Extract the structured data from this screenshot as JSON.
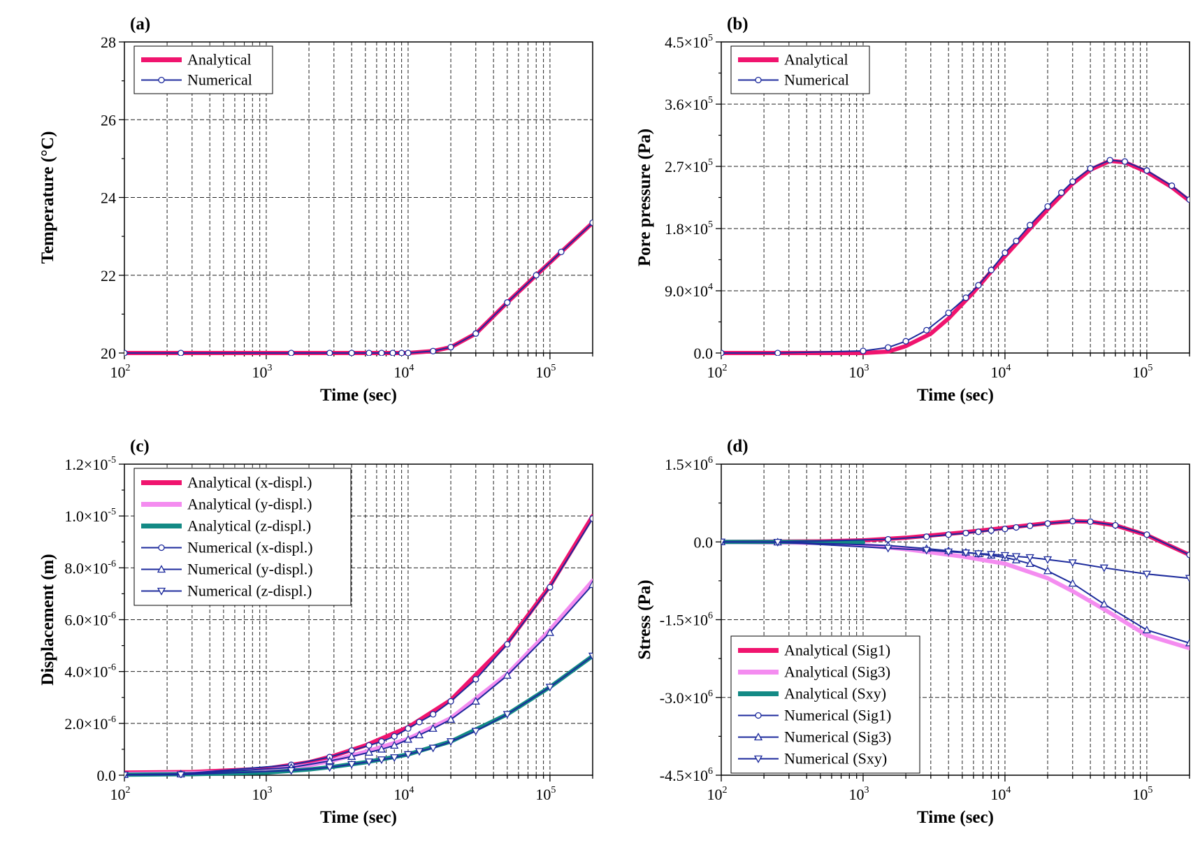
{
  "colors": {
    "analytical_x": "#f0146e",
    "analytical_y": "#f48cf0",
    "analytical_z": "#138a85",
    "numerical": "#1c2a9c",
    "numerical_marker_fill": "#ffffff",
    "grid": "#222222"
  },
  "chart_data": [
    {
      "id": "a",
      "type": "line",
      "panel_label": "(a)",
      "xlabel": "Time (sec)",
      "ylabel": "Temperature (°C)",
      "x_scale": "log",
      "xlim": [
        100,
        200000
      ],
      "ylim": [
        20,
        28
      ],
      "x_ticks": [
        {
          "value": 100,
          "base": "10",
          "exp": "2"
        },
        {
          "value": 1000,
          "base": "10",
          "exp": "3"
        },
        {
          "value": 10000,
          "base": "10",
          "exp": "4"
        },
        {
          "value": 100000,
          "base": "10",
          "exp": "5"
        }
      ],
      "y_ticks": [
        {
          "value": 20,
          "label": "20"
        },
        {
          "value": 22,
          "label": "22"
        },
        {
          "value": 24,
          "label": "24"
        },
        {
          "value": 26,
          "label": "26"
        },
        {
          "value": 28,
          "label": "28"
        }
      ],
      "grid": true,
      "legend_position": "top-left",
      "series": [
        {
          "name": "Analytical",
          "style": "analytical",
          "color_key": "analytical_x",
          "x": [
            100,
            1000,
            10000,
            15000,
            20000,
            30000,
            50000,
            80000,
            120000,
            200000
          ],
          "y": [
            20,
            20,
            20,
            20.05,
            20.15,
            20.5,
            21.3,
            22.0,
            22.6,
            23.35
          ]
        },
        {
          "name": "Numerical",
          "style": "numerical",
          "color_key": "numerical",
          "marker": "circle",
          "x": [
            100,
            250,
            1500,
            2800,
            4000,
            5300,
            6500,
            7800,
            9000,
            10000,
            15000,
            20000,
            30000,
            50000,
            80000,
            120000,
            200000
          ],
          "y": [
            20,
            20,
            20,
            20,
            20,
            20,
            20,
            20,
            20,
            20,
            20.05,
            20.15,
            20.5,
            21.3,
            22.0,
            22.6,
            23.35
          ]
        }
      ]
    },
    {
      "id": "b",
      "type": "line",
      "panel_label": "(b)",
      "xlabel": "Time (sec)",
      "ylabel": "Pore pressure (Pa)",
      "x_scale": "log",
      "xlim": [
        100,
        200000
      ],
      "ylim": [
        0,
        450000
      ],
      "x_ticks": [
        {
          "value": 100,
          "base": "10",
          "exp": "2"
        },
        {
          "value": 1000,
          "base": "10",
          "exp": "3"
        },
        {
          "value": 10000,
          "base": "10",
          "exp": "4"
        },
        {
          "value": 100000,
          "base": "10",
          "exp": "5"
        }
      ],
      "y_ticks": [
        {
          "value": 0,
          "label": "0.0"
        },
        {
          "value": 90000,
          "mant": "9.0×10",
          "exp": "4"
        },
        {
          "value": 180000,
          "mant": "1.8×10",
          "exp": "5"
        },
        {
          "value": 270000,
          "mant": "2.7×10",
          "exp": "5"
        },
        {
          "value": 360000,
          "mant": "3.6×10",
          "exp": "5"
        },
        {
          "value": 450000,
          "mant": "4.5×10",
          "exp": "5"
        }
      ],
      "grid": true,
      "legend_position": "top-left",
      "series": [
        {
          "name": "Analytical",
          "style": "analytical",
          "color_key": "analytical_x",
          "x": [
            100,
            1000,
            1500,
            2000,
            3000,
            4000,
            6000,
            8000,
            10000,
            15000,
            20000,
            30000,
            40000,
            55000,
            70000,
            100000,
            150000,
            200000
          ],
          "y": [
            0,
            0,
            2000,
            10000,
            28000,
            50000,
            88000,
            118000,
            140000,
            180000,
            208000,
            245000,
            265000,
            278000,
            276000,
            262000,
            240000,
            220000
          ]
        },
        {
          "name": "Numerical",
          "style": "numerical",
          "color_key": "numerical",
          "marker": "circle",
          "x": [
            100,
            250,
            1000,
            1500,
            2000,
            2800,
            4000,
            5300,
            6500,
            8000,
            10000,
            12000,
            15000,
            20000,
            25000,
            30000,
            40000,
            55000,
            70000,
            100000,
            150000,
            200000
          ],
          "y": [
            0,
            0,
            3000,
            8000,
            17000,
            33000,
            58000,
            80000,
            98000,
            120000,
            145000,
            162000,
            185000,
            212000,
            232000,
            248000,
            267000,
            279000,
            277000,
            264000,
            242000,
            222000
          ]
        }
      ]
    },
    {
      "id": "c",
      "type": "line",
      "panel_label": "(c)",
      "xlabel": "Time (sec)",
      "ylabel": "Displacement (m)",
      "x_scale": "log",
      "xlim": [
        100,
        200000
      ],
      "ylim": [
        0,
        1.2e-05
      ],
      "x_ticks": [
        {
          "value": 100,
          "base": "10",
          "exp": "2"
        },
        {
          "value": 1000,
          "base": "10",
          "exp": "3"
        },
        {
          "value": 10000,
          "base": "10",
          "exp": "4"
        },
        {
          "value": 100000,
          "base": "10",
          "exp": "5"
        }
      ],
      "y_ticks": [
        {
          "value": 0,
          "label": "0.0"
        },
        {
          "value": 2e-06,
          "mant": "2.0×10",
          "exp": "-6"
        },
        {
          "value": 4e-06,
          "mant": "4.0×10",
          "exp": "-6"
        },
        {
          "value": 6e-06,
          "mant": "6.0×10",
          "exp": "-6"
        },
        {
          "value": 8e-06,
          "mant": "8.0×10",
          "exp": "-6"
        },
        {
          "value": 1e-05,
          "mant": "1.0×10",
          "exp": "-5"
        },
        {
          "value": 1.2e-05,
          "mant": "1.2×10",
          "exp": "-5"
        }
      ],
      "grid": true,
      "legend_position": "top-left",
      "series": [
        {
          "name": "Analytical (x-displ.)",
          "style": "analytical",
          "color_key": "analytical_x",
          "x": [
            100,
            300,
            1000,
            2000,
            3000,
            5000,
            10000,
            20000,
            50000,
            100000,
            200000
          ],
          "y": [
            1e-07,
            1.2e-07,
            2.5e-07,
            5e-07,
            7.5e-07,
            1.15e-06,
            1.85e-06,
            2.9e-06,
            5.1e-06,
            7.3e-06,
            1e-05
          ]
        },
        {
          "name": "Analytical (y-displ.)",
          "style": "analytical",
          "color_key": "analytical_y",
          "x": [
            100,
            300,
            1000,
            2000,
            3000,
            5000,
            10000,
            20000,
            50000,
            100000,
            200000
          ],
          "y": [
            5e-08,
            8e-08,
            1.8e-07,
            3.8e-07,
            5.8e-07,
            9e-07,
            1.4e-06,
            2.2e-06,
            3.9e-06,
            5.6e-06,
            7.5e-06
          ]
        },
        {
          "name": "Analytical (z-displ.)",
          "style": "analytical",
          "color_key": "analytical_z",
          "x": [
            100,
            300,
            1000,
            2000,
            3000,
            5000,
            10000,
            20000,
            50000,
            100000,
            200000
          ],
          "y": [
            2e-08,
            4e-08,
            1e-07,
            2.2e-07,
            3.3e-07,
            5e-07,
            8e-07,
            1.3e-06,
            2.35e-06,
            3.4e-06,
            4.6e-06
          ]
        },
        {
          "name": "Numerical (x-displ.)",
          "style": "numerical",
          "color_key": "numerical",
          "marker": "circle",
          "x": [
            100,
            250,
            1500,
            2800,
            4000,
            5300,
            6500,
            8000,
            10000,
            12000,
            15000,
            20000,
            30000,
            50000,
            100000,
            200000
          ],
          "y": [
            2e-08,
            5e-08,
            4e-07,
            7e-07,
            9.5e-07,
            1.15e-06,
            1.3e-06,
            1.5e-06,
            1.8e-06,
            2.05e-06,
            2.35e-06,
            2.85e-06,
            3.7e-06,
            5.05e-06,
            7.25e-06,
            9.9e-06
          ]
        },
        {
          "name": "Numerical (y-displ.)",
          "style": "numerical",
          "color_key": "numerical",
          "marker": "triangle-up",
          "x": [
            100,
            250,
            1500,
            2800,
            4000,
            5300,
            6500,
            8000,
            10000,
            12000,
            15000,
            20000,
            30000,
            50000,
            100000,
            200000
          ],
          "y": [
            2e-08,
            4e-08,
            3e-07,
            5.5e-07,
            7.2e-07,
            8.8e-07,
            1e-06,
            1.15e-06,
            1.38e-06,
            1.55e-06,
            1.8e-06,
            2.15e-06,
            2.85e-06,
            3.85e-06,
            5.5e-06,
            7.35e-06
          ]
        },
        {
          "name": "Numerical (z-displ.)",
          "style": "numerical",
          "color_key": "numerical",
          "marker": "triangle-down",
          "x": [
            100,
            250,
            1500,
            2800,
            4000,
            5300,
            6500,
            8000,
            10000,
            12000,
            15000,
            20000,
            30000,
            50000,
            100000,
            200000
          ],
          "y": [
            1e-08,
            2e-08,
            1.8e-07,
            3e-07,
            4.2e-07,
            5.2e-07,
            6e-07,
            6.8e-07,
            8e-07,
            9.2e-07,
            1.05e-06,
            1.3e-06,
            1.7e-06,
            2.35e-06,
            3.4e-06,
            4.6e-06
          ]
        }
      ]
    },
    {
      "id": "d",
      "type": "line",
      "panel_label": "(d)",
      "xlabel": "Time (sec)",
      "ylabel": "Stress (Pa)",
      "x_scale": "log",
      "xlim": [
        100,
        200000
      ],
      "ylim": [
        -4500000,
        1500000
      ],
      "x_ticks": [
        {
          "value": 100,
          "base": "10",
          "exp": "2"
        },
        {
          "value": 1000,
          "base": "10",
          "exp": "3"
        },
        {
          "value": 10000,
          "base": "10",
          "exp": "4"
        },
        {
          "value": 100000,
          "base": "10",
          "exp": "5"
        }
      ],
      "y_ticks": [
        {
          "value": -4500000,
          "mant": "-4.5×10",
          "exp": "6"
        },
        {
          "value": -3000000,
          "mant": "-3.0×10",
          "exp": "6"
        },
        {
          "value": -1500000,
          "mant": "-1.5×10",
          "exp": "6"
        },
        {
          "value": 0,
          "label": "0.0"
        },
        {
          "value": 1500000,
          "mant": "1.5×10",
          "exp": "6"
        }
      ],
      "grid": true,
      "legend_position": "bottom-left",
      "series": [
        {
          "name": "Analytical (Sig1)",
          "style": "analytical",
          "color_key": "analytical_x",
          "x": [
            100,
            500,
            1000,
            2000,
            5000,
            10000,
            20000,
            30000,
            40000,
            60000,
            100000,
            200000
          ],
          "y": [
            0,
            10000,
            30000,
            80000,
            180000,
            270000,
            360000,
            400000,
            390000,
            320000,
            130000,
            -250000
          ]
        },
        {
          "name": "Analytical (Sig3)",
          "style": "analytical",
          "color_key": "analytical_y",
          "x": [
            100,
            500,
            1000,
            2000,
            5000,
            10000,
            20000,
            30000,
            50000,
            100000,
            200000
          ],
          "y": [
            0,
            -20000,
            -60000,
            -140000,
            -280000,
            -420000,
            -700000,
            -950000,
            -1300000,
            -1800000,
            -2050000
          ]
        },
        {
          "name": "Analytical (Sxy)",
          "style": "analytical",
          "color_key": "analytical_z",
          "x": [
            100,
            300,
            1000
          ],
          "y": [
            0,
            0,
            -10000
          ]
        },
        {
          "name": "Numerical (Sig1)",
          "style": "numerical",
          "color_key": "numerical",
          "marker": "circle",
          "x": [
            100,
            250,
            1500,
            2800,
            4000,
            5300,
            6500,
            8000,
            10000,
            12000,
            15000,
            20000,
            30000,
            40000,
            60000,
            100000,
            200000
          ],
          "y": [
            0,
            0,
            50000,
            100000,
            140000,
            170000,
            195000,
            220000,
            250000,
            280000,
            310000,
            355000,
            400000,
            390000,
            320000,
            140000,
            -250000
          ]
        },
        {
          "name": "Numerical (Sig3)",
          "style": "numerical",
          "color_key": "numerical",
          "marker": "triangle-up",
          "x": [
            100,
            250,
            1500,
            2800,
            4000,
            5300,
            6500,
            8000,
            10000,
            12000,
            15000,
            20000,
            30000,
            50000,
            100000,
            200000
          ],
          "y": [
            0,
            -5000,
            -70000,
            -130000,
            -170000,
            -200000,
            -230000,
            -260000,
            -300000,
            -350000,
            -420000,
            -560000,
            -800000,
            -1200000,
            -1700000,
            -1950000
          ]
        },
        {
          "name": "Numerical (Sxy)",
          "style": "numerical",
          "color_key": "numerical",
          "marker": "triangle-down",
          "x": [
            100,
            250,
            1500,
            2800,
            4000,
            5300,
            6500,
            8000,
            10000,
            12000,
            15000,
            20000,
            30000,
            50000,
            100000,
            200000
          ],
          "y": [
            0,
            -5000,
            -120000,
            -160000,
            -190000,
            -210000,
            -225000,
            -240000,
            -260000,
            -280000,
            -300000,
            -340000,
            -400000,
            -500000,
            -620000,
            -700000
          ]
        }
      ]
    }
  ]
}
